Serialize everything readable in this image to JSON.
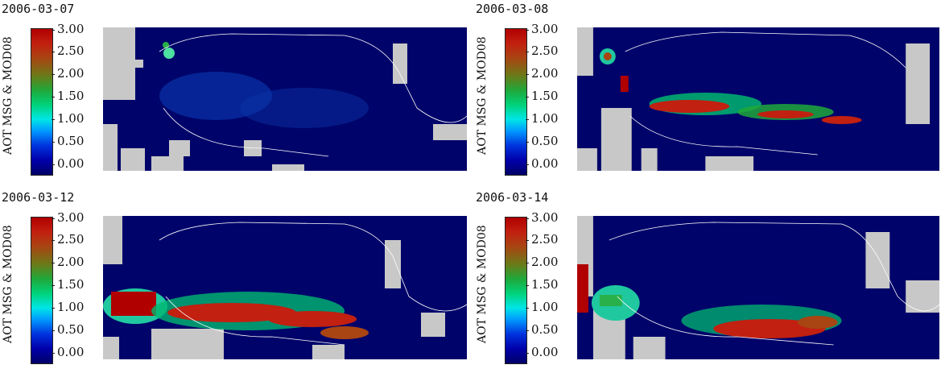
{
  "colorbar": {
    "label": "AOT MSG & MOD08",
    "ticks": [
      "3.00",
      "2.50",
      "2.00",
      "1.50",
      "1.00",
      "0.50",
      "0.00"
    ]
  },
  "panels": [
    {
      "date": "2006-03-07"
    },
    {
      "date": "2006-03-08"
    },
    {
      "date": "2006-03-12"
    },
    {
      "date": "2006-03-14"
    }
  ],
  "colors": {
    "missing": "#c8c8c8",
    "low": "#00046a",
    "high": "#b00000"
  }
}
